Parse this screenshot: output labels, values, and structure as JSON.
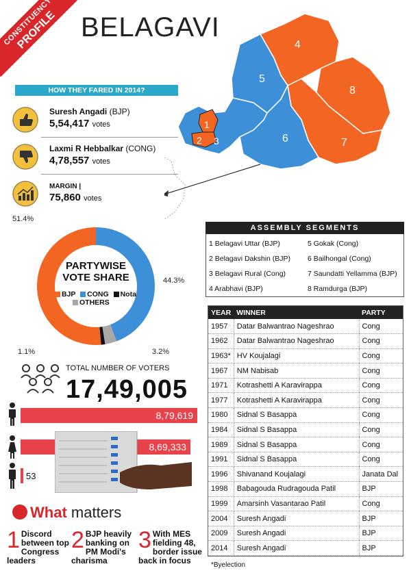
{
  "ribbon": {
    "line1": "CONSTITUENCY",
    "line2": "PROFILE"
  },
  "title": "BELAGAVI",
  "fared": {
    "heading": "HOW THEY FARED IN 2014?",
    "winner": {
      "name": "Suresh Angadi",
      "party": "(BJP)",
      "votes": "5,54,417",
      "unit": "votes"
    },
    "runner": {
      "name": "Laxmi R Hebbalkar",
      "party": "(CONG)",
      "votes": "4,78,557",
      "unit": "votes"
    },
    "margin": {
      "label": "MARGIN |",
      "votes": "75,860",
      "unit": "votes"
    }
  },
  "donut": {
    "title1": "PARTYWISE",
    "title2": "VOTE SHARE",
    "legend": [
      "BJP",
      "CONG",
      "Nota",
      "OTHERS"
    ],
    "bjp_pct": "51.4%",
    "cong_pct": "44.3%",
    "nota_pct": "1.1%",
    "others_pct": "3.2%",
    "colors": {
      "bjp": "#f26522",
      "cong": "#3d8fd8",
      "nota": "#111111",
      "others": "#a8a8a8"
    }
  },
  "chart_data": {
    "type": "pie",
    "title": "PARTYWISE VOTE SHARE",
    "categories": [
      "BJP",
      "CONG",
      "Nota",
      "OTHERS"
    ],
    "values": [
      51.4,
      44.3,
      1.1,
      3.2
    ]
  },
  "voters": {
    "label": "TOTAL NUMBER OF VOTERS",
    "total": "17,49,005",
    "male": "8,79,619",
    "female": "8,69,333",
    "others": "53"
  },
  "what_matters": {
    "title_bold": "What",
    "title_rest": "matters",
    "items": [
      {
        "n": "1",
        "text": "Discord between top Congress leaders"
      },
      {
        "n": "2",
        "text": "BJP heavily banking on PM Modi's charisma"
      },
      {
        "n": "3",
        "text": "With MES fielding 48, border issue back in focus"
      }
    ]
  },
  "map": {
    "labels": [
      "1",
      "2",
      "3",
      "4",
      "5",
      "6",
      "7",
      "8"
    ]
  },
  "segments": {
    "heading": "ASSEMBLY SEGMENTS",
    "items": [
      "1 Belagavi Uttar (BJP)",
      "2 Belagavi Dakshin (BJP)",
      "3 Belagavi Rural (Cong)",
      "4 Arabhavi (BJP)",
      "5 Gokak (Cong)",
      "6 Bailhongal (Cong)",
      "7 Saundatti Yellamma (BJP)",
      "8 Ramdurga (BJP)"
    ]
  },
  "history": {
    "headers": [
      "YEAR",
      "WINNER",
      "PARTY"
    ],
    "rows": [
      [
        "1957",
        "Datar Balwantrao Nageshrao",
        "Cong"
      ],
      [
        "1962",
        "Datar Balwantrao Nageshrao",
        "Cong"
      ],
      [
        "1963*",
        "HV Koujalagi",
        "Cong"
      ],
      [
        "1967",
        "NM Nabisab",
        "Cong"
      ],
      [
        "1971",
        "Kotrashetti A Karavirappa",
        "Cong"
      ],
      [
        "1977",
        "Kotrashetti A Karavirappa",
        "Cong"
      ],
      [
        "1980",
        "Sidnal S Basappa",
        "Cong"
      ],
      [
        "1984",
        "Sidnal S Basappa",
        "Cong"
      ],
      [
        "1989",
        "Sidnal S Basappa",
        "Cong"
      ],
      [
        "1991",
        "Sidnal S Basappa",
        "Cong"
      ],
      [
        "1996",
        "Shivanand Koujalagi",
        "Janata Dal"
      ],
      [
        "1998",
        "Babagouda Rudragouda Patil",
        "BJP"
      ],
      [
        "1999",
        "Amarsinh Vasantarao Patil",
        "Cong"
      ],
      [
        "2004",
        "Suresh Angadi",
        "BJP"
      ],
      [
        "2009",
        "Suresh Angadi",
        "BJP"
      ],
      [
        "2014",
        "Suresh Angadi",
        "BJP"
      ]
    ],
    "footnote": "*Byelection"
  }
}
